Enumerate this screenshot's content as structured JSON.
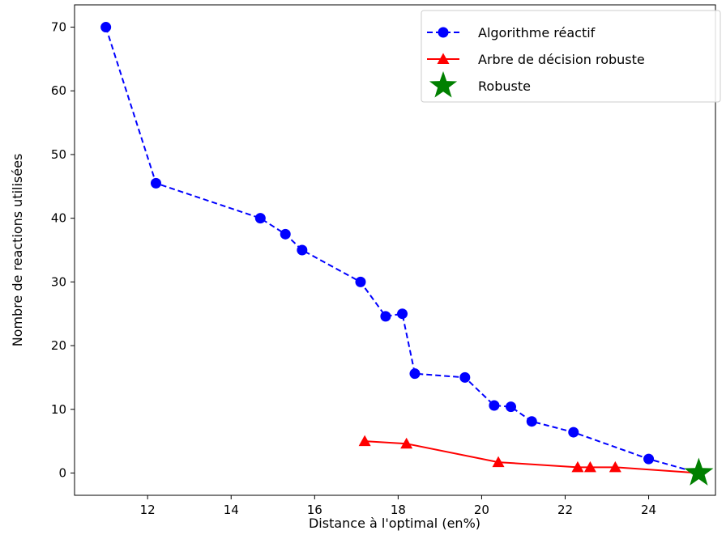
{
  "chart_data": {
    "type": "line",
    "xlabel": "Distance à l'optimal (en%)",
    "ylabel": "Nombre de reactions utilisées",
    "xlim": [
      10.25,
      25.6
    ],
    "ylim": [
      -3.5,
      73.5
    ],
    "xticks": [
      12,
      14,
      16,
      18,
      20,
      22,
      24
    ],
    "yticks": [
      0,
      10,
      20,
      30,
      40,
      50,
      60,
      70
    ],
    "grid": false,
    "legend_position": "top-right",
    "series": [
      {
        "name": "Algorithme réactif",
        "color": "#0000ff",
        "line": "dashed",
        "marker": "circle",
        "x": [
          11.0,
          12.2,
          14.7,
          15.3,
          15.7,
          17.1,
          17.7,
          18.1,
          18.4,
          19.6,
          20.3,
          20.7,
          21.2,
          22.2,
          24.0,
          25.2
        ],
        "y": [
          70,
          45.5,
          40,
          37.5,
          35,
          30,
          24.6,
          25,
          15.6,
          15,
          10.6,
          10.4,
          8.1,
          6.4,
          2.2,
          0
        ]
      },
      {
        "name": "Arbre de décision robuste",
        "color": "#ff0000",
        "line": "solid",
        "marker": "triangle",
        "x": [
          17.2,
          18.2,
          20.4,
          22.3,
          22.6,
          23.2,
          25.2
        ],
        "y": [
          5,
          4.6,
          1.7,
          0.9,
          0.9,
          0.9,
          0
        ]
      },
      {
        "name": "Robuste",
        "color": "#008000",
        "line": "none",
        "marker": "star",
        "x": [
          25.2
        ],
        "y": [
          0
        ]
      }
    ]
  }
}
